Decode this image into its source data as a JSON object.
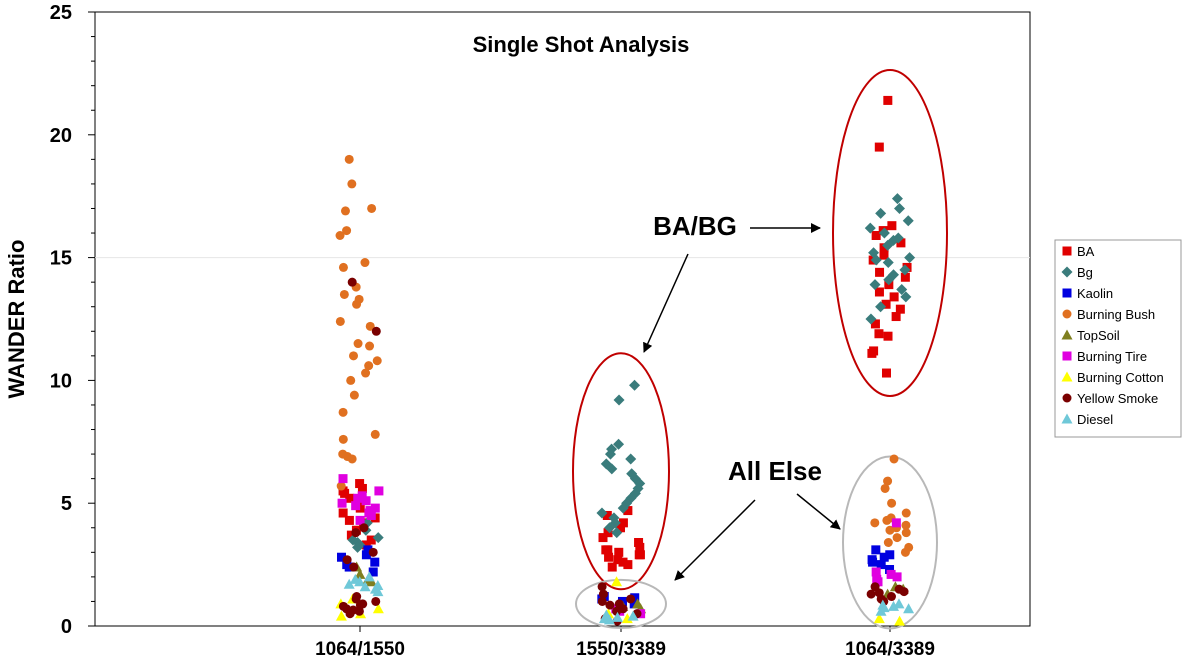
{
  "chart_data": {
    "type": "scatter",
    "title": "Single Shot Analysis",
    "xlabel": "",
    "ylabel": "WANDER Ratio",
    "ylim": [
      0,
      25
    ],
    "yticks": [
      "0",
      "5",
      "10",
      "15",
      "20",
      "25"
    ],
    "categories": [
      "1064/1550",
      "1550/3389",
      "1064/3389"
    ],
    "grid": false,
    "legend_position": "right",
    "annotations": [
      {
        "text": "BA/BG"
      },
      {
        "text": "All Else"
      }
    ],
    "series": [
      {
        "name": "BA",
        "color": "#e00000",
        "marker": "square",
        "points": [
          [
            0,
            5.8
          ],
          [
            0,
            5.6
          ],
          [
            0,
            5.4
          ],
          [
            0,
            5.2
          ],
          [
            0,
            5.0
          ],
          [
            0,
            4.8
          ],
          [
            0,
            4.6
          ],
          [
            0,
            4.4
          ],
          [
            0,
            4.2
          ],
          [
            0,
            3.9
          ],
          [
            0,
            3.7
          ],
          [
            0,
            3.5
          ],
          [
            0,
            3.3
          ],
          [
            0,
            5.5
          ],
          [
            0,
            4.9
          ],
          [
            0,
            4.3
          ],
          [
            1,
            4.7
          ],
          [
            1,
            4.5
          ],
          [
            1,
            4.2
          ],
          [
            1,
            4.0
          ],
          [
            1,
            3.8
          ],
          [
            1,
            3.6
          ],
          [
            1,
            3.4
          ],
          [
            1,
            3.2
          ],
          [
            1,
            3.1
          ],
          [
            1,
            3.0
          ],
          [
            1,
            2.9
          ],
          [
            1,
            2.8
          ],
          [
            1,
            2.7
          ],
          [
            1,
            2.6
          ],
          [
            1,
            2.5
          ],
          [
            1,
            2.4
          ],
          [
            1,
            3.1
          ],
          [
            1,
            2.9
          ],
          [
            2,
            21.4
          ],
          [
            2,
            19.5
          ],
          [
            2,
            16.3
          ],
          [
            2,
            16.1
          ],
          [
            2,
            15.9
          ],
          [
            2,
            15.6
          ],
          [
            2,
            15.4
          ],
          [
            2,
            15.1
          ],
          [
            2,
            14.9
          ],
          [
            2,
            14.6
          ],
          [
            2,
            14.4
          ],
          [
            2,
            14.2
          ],
          [
            2,
            13.9
          ],
          [
            2,
            13.6
          ],
          [
            2,
            13.4
          ],
          [
            2,
            13.1
          ],
          [
            2,
            12.9
          ],
          [
            2,
            12.6
          ],
          [
            2,
            12.3
          ],
          [
            2,
            11.9
          ],
          [
            2,
            11.8
          ],
          [
            2,
            11.2
          ],
          [
            2,
            11.1
          ],
          [
            2,
            10.3
          ]
        ]
      },
      {
        "name": "Bg",
        "color": "#3a7c7c",
        "marker": "diamond",
        "points": [
          [
            0,
            4.2
          ],
          [
            0,
            3.9
          ],
          [
            0,
            3.6
          ],
          [
            0,
            3.5
          ],
          [
            0,
            3.4
          ],
          [
            0,
            3.3
          ],
          [
            0,
            3.2
          ],
          [
            1,
            9.8
          ],
          [
            1,
            9.2
          ],
          [
            1,
            7.4
          ],
          [
            1,
            7.2
          ],
          [
            1,
            7.0
          ],
          [
            1,
            6.8
          ],
          [
            1,
            6.6
          ],
          [
            1,
            6.4
          ],
          [
            1,
            6.2
          ],
          [
            1,
            6.0
          ],
          [
            1,
            5.8
          ],
          [
            1,
            5.6
          ],
          [
            1,
            5.4
          ],
          [
            1,
            5.2
          ],
          [
            1,
            5.0
          ],
          [
            1,
            4.8
          ],
          [
            1,
            4.6
          ],
          [
            1,
            4.4
          ],
          [
            1,
            4.2
          ],
          [
            1,
            4.0
          ],
          [
            1,
            3.8
          ],
          [
            2,
            17.4
          ],
          [
            2,
            17.0
          ],
          [
            2,
            16.8
          ],
          [
            2,
            16.5
          ],
          [
            2,
            16.2
          ],
          [
            2,
            16.0
          ],
          [
            2,
            15.7
          ],
          [
            2,
            15.5
          ],
          [
            2,
            15.2
          ],
          [
            2,
            15.0
          ],
          [
            2,
            14.8
          ],
          [
            2,
            14.5
          ],
          [
            2,
            14.3
          ],
          [
            2,
            14.1
          ],
          [
            2,
            13.9
          ],
          [
            2,
            13.7
          ],
          [
            2,
            13.4
          ],
          [
            2,
            13.0
          ],
          [
            2,
            12.5
          ],
          [
            2,
            14.9
          ],
          [
            2,
            15.8
          ]
        ]
      },
      {
        "name": "Kaolin",
        "color": "#0000e0",
        "marker": "square",
        "points": [
          [
            0,
            3.1
          ],
          [
            0,
            2.9
          ],
          [
            0,
            2.6
          ],
          [
            0,
            2.4
          ],
          [
            0,
            2.2
          ],
          [
            0,
            2.5
          ],
          [
            0,
            2.8
          ],
          [
            1,
            1.2
          ],
          [
            1,
            1.1
          ],
          [
            1,
            1.0
          ],
          [
            1,
            0.9
          ],
          [
            1,
            1.15
          ],
          [
            2,
            3.1
          ],
          [
            2,
            2.9
          ],
          [
            2,
            2.7
          ],
          [
            2,
            2.5
          ],
          [
            2,
            2.3
          ],
          [
            2,
            2.6
          ],
          [
            2,
            2.8
          ]
        ]
      },
      {
        "name": "Burning Bush",
        "color": "#e07020",
        "marker": "circle",
        "points": [
          [
            0,
            19.0
          ],
          [
            0,
            18.0
          ],
          [
            0,
            17.0
          ],
          [
            0,
            16.9
          ],
          [
            0,
            16.1
          ],
          [
            0,
            15.9
          ],
          [
            0,
            14.8
          ],
          [
            0,
            14.6
          ],
          [
            0,
            13.8
          ],
          [
            0,
            13.5
          ],
          [
            0,
            13.3
          ],
          [
            0,
            13.1
          ],
          [
            0,
            12.4
          ],
          [
            0,
            12.2
          ],
          [
            0,
            11.5
          ],
          [
            0,
            11.4
          ],
          [
            0,
            11.0
          ],
          [
            0,
            10.8
          ],
          [
            0,
            10.6
          ],
          [
            0,
            10.3
          ],
          [
            0,
            10.0
          ],
          [
            0,
            9.4
          ],
          [
            0,
            8.7
          ],
          [
            0,
            7.8
          ],
          [
            0,
            7.6
          ],
          [
            0,
            7.0
          ],
          [
            0,
            6.9
          ],
          [
            0,
            6.8
          ],
          [
            0,
            5.7
          ],
          [
            2,
            6.8
          ],
          [
            2,
            5.9
          ],
          [
            2,
            5.6
          ],
          [
            2,
            5.0
          ],
          [
            2,
            4.6
          ],
          [
            2,
            4.4
          ],
          [
            2,
            4.3
          ],
          [
            2,
            4.2
          ],
          [
            2,
            4.1
          ],
          [
            2,
            4.0
          ],
          [
            2,
            3.9
          ],
          [
            2,
            3.8
          ],
          [
            2,
            3.6
          ],
          [
            2,
            3.4
          ],
          [
            2,
            3.2
          ],
          [
            2,
            3.0
          ]
        ]
      },
      {
        "name": "TopSoil",
        "color": "#7f7f1f",
        "marker": "triangle",
        "points": [
          [
            0,
            2.4
          ],
          [
            0,
            2.1
          ],
          [
            0,
            1.9
          ],
          [
            0,
            1.8
          ],
          [
            1,
            0.9
          ],
          [
            1,
            0.8
          ],
          [
            1,
            0.7
          ],
          [
            2,
            1.6
          ],
          [
            2,
            1.5
          ],
          [
            2,
            1.3
          ]
        ]
      },
      {
        "name": "Burning Tire",
        "color": "#e000e0",
        "marker": "square",
        "points": [
          [
            0,
            6.0
          ],
          [
            0,
            5.5
          ],
          [
            0,
            5.3
          ],
          [
            0,
            5.1
          ],
          [
            0,
            4.9
          ],
          [
            0,
            4.7
          ],
          [
            0,
            4.5
          ],
          [
            0,
            4.3
          ],
          [
            0,
            5.2
          ],
          [
            0,
            4.8
          ],
          [
            0,
            4.6
          ],
          [
            0,
            5.0
          ],
          [
            1,
            0.7
          ],
          [
            1,
            0.6
          ],
          [
            1,
            0.5
          ],
          [
            2,
            4.2
          ],
          [
            2,
            2.2
          ],
          [
            2,
            2.0
          ],
          [
            2,
            1.9
          ],
          [
            2,
            1.8
          ],
          [
            2,
            2.1
          ]
        ]
      },
      {
        "name": "Burning Cotton",
        "color": "#ffff00",
        "marker": "triangle",
        "points": [
          [
            0,
            1.1
          ],
          [
            0,
            0.9
          ],
          [
            0,
            0.7
          ],
          [
            0,
            0.5
          ],
          [
            0,
            0.4
          ],
          [
            1,
            1.8
          ],
          [
            1,
            0.5
          ],
          [
            1,
            0.3
          ],
          [
            2,
            0.3
          ],
          [
            2,
            0.2
          ]
        ]
      },
      {
        "name": "Yellow Smoke",
        "color": "#7a0000",
        "marker": "circle",
        "points": [
          [
            0,
            14.0
          ],
          [
            0,
            12.0
          ],
          [
            0,
            4.0
          ],
          [
            0,
            3.8
          ],
          [
            0,
            3.0
          ],
          [
            0,
            2.7
          ],
          [
            0,
            2.4
          ],
          [
            0,
            1.2
          ],
          [
            0,
            1.0
          ],
          [
            0,
            0.9
          ],
          [
            0,
            0.8
          ],
          [
            0,
            0.7
          ],
          [
            0,
            0.6
          ],
          [
            0,
            0.5
          ],
          [
            0,
            1.1
          ],
          [
            0,
            0.85
          ],
          [
            0,
            0.65
          ],
          [
            1,
            1.6
          ],
          [
            1,
            1.3
          ],
          [
            1,
            1.1
          ],
          [
            1,
            0.9
          ],
          [
            1,
            0.7
          ],
          [
            1,
            0.5
          ],
          [
            1,
            0.3
          ],
          [
            1,
            0.2
          ],
          [
            1,
            0.85
          ],
          [
            1,
            0.6
          ],
          [
            1,
            1.0
          ],
          [
            2,
            1.6
          ],
          [
            2,
            1.5
          ],
          [
            2,
            1.4
          ],
          [
            2,
            1.3
          ],
          [
            2,
            1.2
          ],
          [
            2,
            1.1
          ],
          [
            2,
            1.0
          ],
          [
            2,
            1.35
          ]
        ]
      },
      {
        "name": "Diesel",
        "color": "#6fc8d8",
        "marker": "triangle",
        "points": [
          [
            0,
            2.0
          ],
          [
            0,
            1.8
          ],
          [
            0,
            1.7
          ],
          [
            0,
            1.6
          ],
          [
            0,
            1.5
          ],
          [
            0,
            1.4
          ],
          [
            0,
            1.9
          ],
          [
            0,
            1.65
          ],
          [
            1,
            0.4
          ],
          [
            1,
            0.35
          ],
          [
            1,
            0.3
          ],
          [
            1,
            0.25
          ],
          [
            1,
            0.45
          ],
          [
            2,
            0.9
          ],
          [
            2,
            0.8
          ],
          [
            2,
            0.7
          ],
          [
            2,
            0.6
          ],
          [
            2,
            0.75
          ],
          [
            2,
            0.85
          ]
        ]
      }
    ]
  }
}
